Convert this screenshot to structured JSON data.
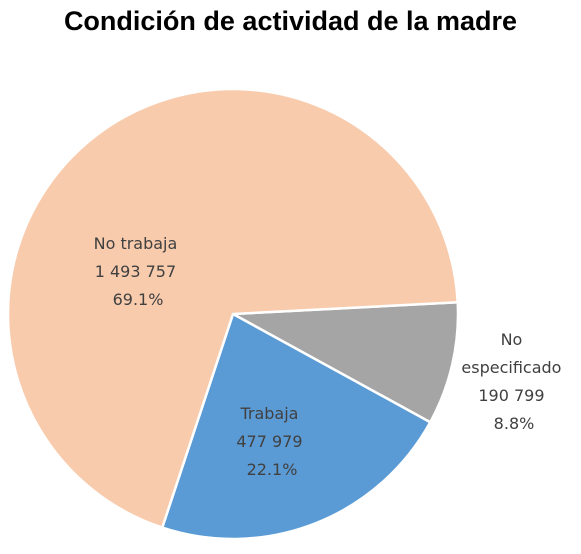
{
  "title": "Condición de actividad de la madre",
  "chart_data": {
    "type": "pie",
    "title": "Condición de actividad de la madre",
    "slices": [
      {
        "label": "No trabaja",
        "value_text": "1 493 757",
        "value": 1493757,
        "percent_text": "69.1%",
        "percent": 69.1,
        "color": "#F8CBAD"
      },
      {
        "label": "Trabaja",
        "value_text": "477 979",
        "value": 477979,
        "percent_text": "22.1%",
        "percent": 22.1,
        "color": "#5B9BD5"
      },
      {
        "label": "No especificado",
        "label_lines": [
          "No",
          "especificado"
        ],
        "value_text": "190 799",
        "value": 190799,
        "percent_text": "8.8%",
        "percent": 8.8,
        "color": "#A5A5A5"
      }
    ],
    "slice_border_color": "#FFFFFF",
    "legend": "none"
  }
}
